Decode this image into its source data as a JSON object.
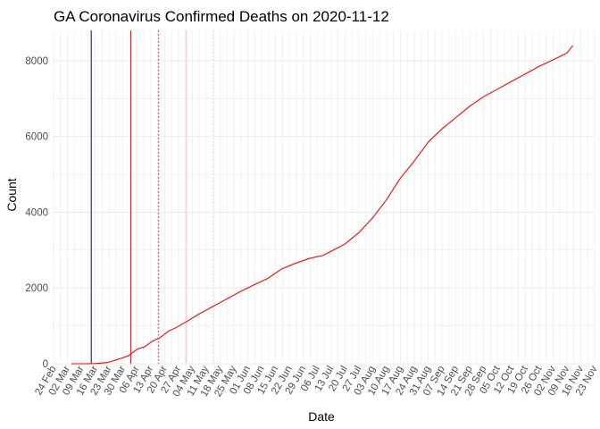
{
  "chart_data": {
    "type": "line",
    "title": "GA Coronavirus Confirmed Deaths on 2020-11-12",
    "xlabel": "Date",
    "ylabel": "Count",
    "xlim": [
      "2020-02-24",
      "2020-11-23"
    ],
    "ylim": [
      0,
      8800
    ],
    "grid": true,
    "legend": "none",
    "y_ticks": [
      0,
      2000,
      4000,
      6000,
      8000
    ],
    "x_ticks": [
      {
        "date": "2020-02-24",
        "label": "24 Feb"
      },
      {
        "date": "2020-03-02",
        "label": "02 Mar"
      },
      {
        "date": "2020-03-09",
        "label": "09 Mar"
      },
      {
        "date": "2020-03-16",
        "label": "16 Mar"
      },
      {
        "date": "2020-03-23",
        "label": "23 Mar"
      },
      {
        "date": "2020-03-30",
        "label": "30 Mar"
      },
      {
        "date": "2020-04-06",
        "label": "06 Apr"
      },
      {
        "date": "2020-04-13",
        "label": "13 Apr"
      },
      {
        "date": "2020-04-20",
        "label": "20 Apr"
      },
      {
        "date": "2020-04-27",
        "label": "27 Apr"
      },
      {
        "date": "2020-05-04",
        "label": "04 May"
      },
      {
        "date": "2020-05-11",
        "label": "11 May"
      },
      {
        "date": "2020-05-18",
        "label": "18 May"
      },
      {
        "date": "2020-05-25",
        "label": "25 May"
      },
      {
        "date": "2020-06-01",
        "label": "01 Jun"
      },
      {
        "date": "2020-06-08",
        "label": "08 Jun"
      },
      {
        "date": "2020-06-15",
        "label": "15 Jun"
      },
      {
        "date": "2020-06-22",
        "label": "22 Jun"
      },
      {
        "date": "2020-06-29",
        "label": "29 Jun"
      },
      {
        "date": "2020-07-06",
        "label": "06 Jul"
      },
      {
        "date": "2020-07-13",
        "label": "13 Jul"
      },
      {
        "date": "2020-07-20",
        "label": "20 Jul"
      },
      {
        "date": "2020-07-27",
        "label": "27 Jul"
      },
      {
        "date": "2020-08-03",
        "label": "03 Aug"
      },
      {
        "date": "2020-08-10",
        "label": "10 Aug"
      },
      {
        "date": "2020-08-17",
        "label": "17 Aug"
      },
      {
        "date": "2020-08-24",
        "label": "24 Aug"
      },
      {
        "date": "2020-08-31",
        "label": "31 Aug"
      },
      {
        "date": "2020-09-07",
        "label": "07 Sep"
      },
      {
        "date": "2020-09-14",
        "label": "14 Sep"
      },
      {
        "date": "2020-09-21",
        "label": "21 Sep"
      },
      {
        "date": "2020-09-28",
        "label": "28 Sep"
      },
      {
        "date": "2020-10-05",
        "label": "05 Oct"
      },
      {
        "date": "2020-10-12",
        "label": "12 Oct"
      },
      {
        "date": "2020-10-19",
        "label": "19 Oct"
      },
      {
        "date": "2020-10-26",
        "label": "26 Oct"
      },
      {
        "date": "2020-11-02",
        "label": "02 Nov"
      },
      {
        "date": "2020-11-09",
        "label": "09 Nov"
      },
      {
        "date": "2020-11-16",
        "label": "16 Nov"
      },
      {
        "date": "2020-11-23",
        "label": "23 Nov"
      }
    ],
    "reference_lines": [
      {
        "date": "2020-03-14",
        "color": "#00008b",
        "style": "solid"
      },
      {
        "date": "2020-04-03",
        "color": "#ff0000",
        "style": "solid"
      },
      {
        "date": "2020-04-17",
        "color": "#ff0000",
        "style": "dotted"
      },
      {
        "date": "2020-05-01",
        "color": "#ffc0cb",
        "style": "solid"
      },
      {
        "date": "2020-05-15",
        "color": "#ffc0cb",
        "style": "dotted"
      }
    ],
    "series": [
      {
        "color": "#ff0000",
        "x": [
          "2020-03-04",
          "2020-03-10",
          "2020-03-16",
          "2020-03-22",
          "2020-03-26",
          "2020-03-30",
          "2020-04-02",
          "2020-04-06",
          "2020-04-10",
          "2020-04-14",
          "2020-04-18",
          "2020-04-22",
          "2020-04-26",
          "2020-05-01",
          "2020-05-07",
          "2020-05-14",
          "2020-05-21",
          "2020-05-28",
          "2020-06-04",
          "2020-06-11",
          "2020-06-18",
          "2020-06-25",
          "2020-07-02",
          "2020-07-09",
          "2020-07-16",
          "2020-07-20",
          "2020-07-27",
          "2020-08-03",
          "2020-08-10",
          "2020-08-17",
          "2020-08-24",
          "2020-08-31",
          "2020-09-07",
          "2020-09-14",
          "2020-09-21",
          "2020-09-28",
          "2020-10-05",
          "2020-10-12",
          "2020-10-19",
          "2020-10-26",
          "2020-11-02",
          "2020-11-09",
          "2020-11-12"
        ],
        "y": [
          0,
          0,
          5,
          30,
          90,
          160,
          220,
          380,
          450,
          600,
          700,
          860,
          960,
          1110,
          1300,
          1500,
          1700,
          1900,
          2080,
          2250,
          2500,
          2650,
          2780,
          2860,
          3050,
          3160,
          3460,
          3850,
          4330,
          4900,
          5350,
          5850,
          6200,
          6500,
          6800,
          7050,
          7250,
          7450,
          7650,
          7850,
          8020,
          8200,
          8400
        ]
      }
    ]
  }
}
